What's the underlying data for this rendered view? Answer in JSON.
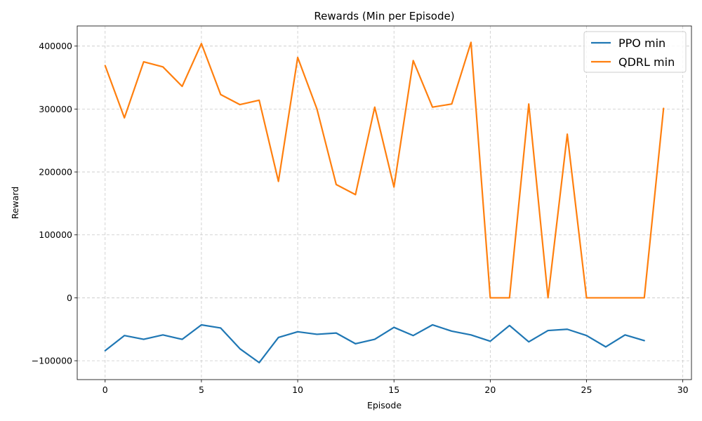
{
  "chart_data": {
    "type": "line",
    "title": "Rewards (Min per Episode)",
    "xlabel": "Episode",
    "ylabel": "Reward",
    "xlim": [
      -1.45,
      30.45
    ],
    "ylim": [
      -130000,
      432000
    ],
    "xticks": [
      0,
      5,
      10,
      15,
      20,
      25,
      30
    ],
    "xtick_labels": [
      "0",
      "5",
      "10",
      "15",
      "20",
      "25",
      "30"
    ],
    "yticks": [
      -100000,
      0,
      100000,
      200000,
      300000,
      400000
    ],
    "ytick_labels": [
      "−100000",
      "0",
      "100000",
      "200000",
      "300000",
      "400000"
    ],
    "grid": true,
    "legend_position": "top-right",
    "series": [
      {
        "name": "PPO min",
        "color": "#1f77b4",
        "x": [
          0,
          1,
          2,
          3,
          4,
          5,
          6,
          7,
          8,
          9,
          10,
          11,
          12,
          13,
          14,
          15,
          16,
          17,
          18,
          19,
          20,
          21,
          22,
          23,
          24,
          25,
          26,
          27,
          28
        ],
        "y": [
          -84000,
          -60000,
          -66000,
          -59000,
          -66000,
          -43000,
          -48000,
          -81000,
          -103000,
          -63000,
          -54000,
          -58000,
          -56000,
          -73000,
          -66000,
          -47000,
          -60000,
          -43000,
          -53000,
          -59000,
          -69000,
          -44000,
          -70000,
          -52000,
          -50000,
          -60000,
          -78000,
          -59000,
          -68000
        ]
      },
      {
        "name": "QDRL min",
        "color": "#ff7f0e",
        "x": [
          0,
          1,
          2,
          3,
          4,
          5,
          6,
          7,
          8,
          9,
          10,
          11,
          12,
          13,
          14,
          15,
          16,
          17,
          18,
          19,
          20,
          21,
          22,
          23,
          24,
          25,
          26,
          27,
          28,
          29
        ],
        "y": [
          369000,
          286000,
          375000,
          367000,
          336000,
          404000,
          323000,
          307000,
          314000,
          185000,
          382000,
          300000,
          180000,
          164000,
          303000,
          176000,
          377000,
          303000,
          308000,
          406000,
          0,
          0,
          308000,
          0,
          260000,
          0,
          0,
          0,
          0,
          301000
        ]
      }
    ]
  }
}
